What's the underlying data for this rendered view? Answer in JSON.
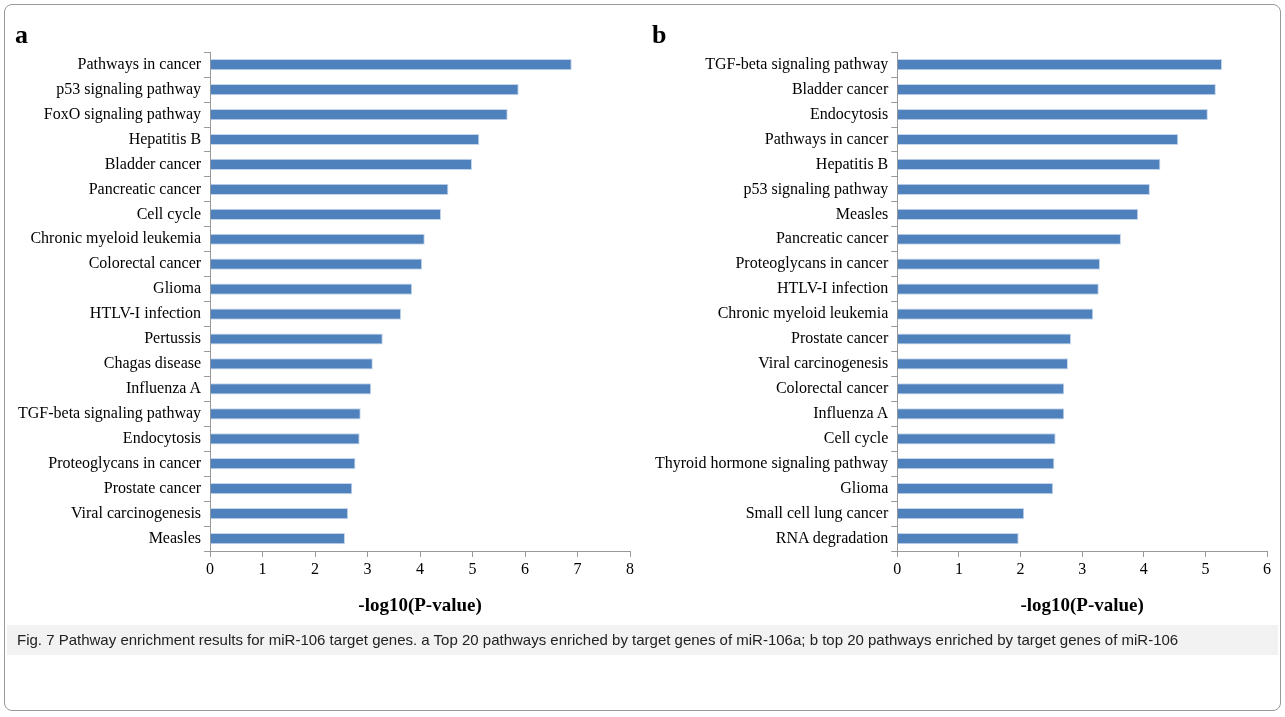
{
  "chart_data": [
    {
      "type": "bar",
      "orientation": "horizontal",
      "title": "a",
      "xlabel": "-log10(P-value)",
      "color": "#4f81bd",
      "grid": false,
      "legend": false,
      "categories": [
        "Pathways in cancer",
        "p53 signaling pathway",
        "FoxO signaling pathway",
        "Hepatitis B",
        "Bladder cancer",
        "Pancreatic cancer",
        "Cell cycle",
        "Chronic myeloid leukemia",
        "Colorectal cancer",
        "Glioma",
        "HTLV-I infection",
        "Pertussis",
        "Chagas disease",
        "Influenza A",
        "TGF-beta signaling pathway",
        "Endocytosis",
        "Proteoglycans in cancer",
        "Prostate cancer",
        "Viral carcinogenesis",
        "Measles"
      ],
      "values": [
        6.89,
        5.88,
        5.67,
        5.13,
        4.99,
        4.54,
        4.4,
        4.09,
        4.04,
        3.85,
        3.64,
        3.29,
        3.1,
        3.07,
        2.87,
        2.85,
        2.77,
        2.71,
        2.63,
        2.57
      ],
      "xlim": [
        0,
        8
      ],
      "xticks": [
        0,
        1,
        2,
        3,
        4,
        5,
        6,
        7,
        8
      ]
    },
    {
      "type": "bar",
      "orientation": "horizontal",
      "title": "b",
      "xlabel": "-log10(P-value)",
      "color": "#4f81bd",
      "grid": false,
      "legend": false,
      "categories": [
        "TGF-beta signaling pathway",
        "Bladder cancer",
        "Endocytosis",
        "Pathways in cancer",
        "Hepatitis B",
        "p53 signaling pathway",
        "Measles",
        "Pancreatic cancer",
        "Proteoglycans in cancer",
        "HTLV-I infection",
        "Chronic myeloid leukemia",
        "Prostate cancer",
        "Viral carcinogenesis",
        "Colorectal cancer",
        "Influenza A",
        "Cell cycle",
        "Thyroid hormone signaling pathway",
        "Glioma",
        "Small cell lung cancer",
        "RNA degradation"
      ],
      "values": [
        5.27,
        5.17,
        5.04,
        4.56,
        4.27,
        4.1,
        3.91,
        3.63,
        3.29,
        3.27,
        3.18,
        2.82,
        2.77,
        2.71,
        2.71,
        2.57,
        2.55,
        2.53,
        2.06,
        1.97
      ],
      "xlim": [
        0,
        6
      ],
      "xticks": [
        0,
        1,
        2,
        3,
        4,
        5,
        6
      ],
      "annotations": [
        "Fig. 7  Pathway enrichment results for miR-106 target genes. a Top 20 pathways enriched by target genes of miR-106a; b top 20 pathways enriched by target genes of miR-106"
      ]
    }
  ]
}
